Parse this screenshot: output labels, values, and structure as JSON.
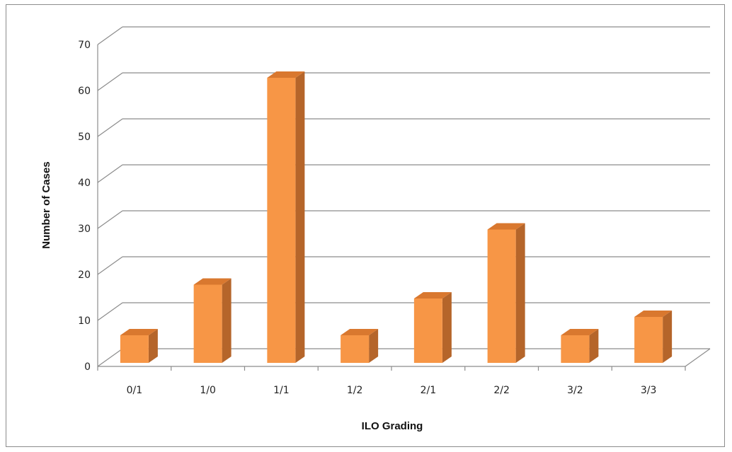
{
  "chart_data": {
    "type": "bar",
    "categories": [
      "0/1",
      "1/0",
      "1/1",
      "1/2",
      "2/1",
      "2/2",
      "3/2",
      "3/3"
    ],
    "values": [
      6,
      17,
      62,
      6,
      14,
      29,
      6,
      10
    ],
    "xlabel": "ILO Grading",
    "ylabel": "Number of Cases",
    "ylim": [
      0,
      70
    ],
    "yticks": [
      0,
      10,
      20,
      30,
      40,
      50,
      60,
      70
    ],
    "grid": true,
    "style": "3d-column",
    "colors": {
      "bar_front": "#F79646",
      "bar_side": "#B5652A",
      "bar_top": "#D9782F",
      "gridline": "#8c8c8c"
    }
  }
}
